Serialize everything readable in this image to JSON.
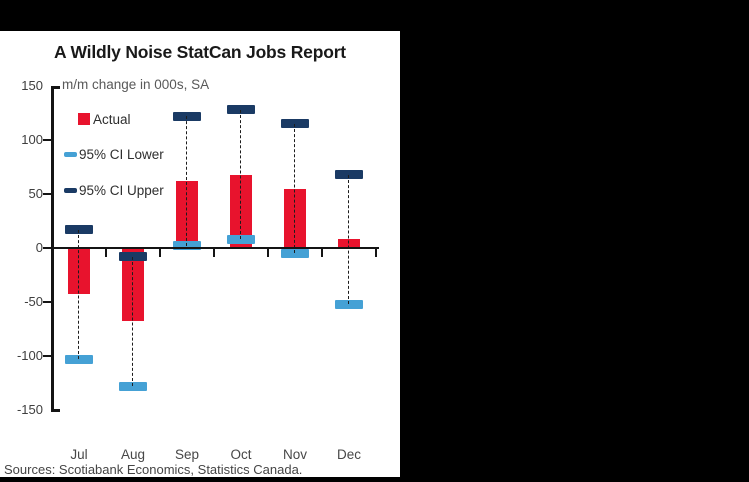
{
  "frame": {
    "background_color": "#000000",
    "panel_color": "#ffffff"
  },
  "chart_data": {
    "type": "bar",
    "title": "A Wildly Noise StatCan Jobs Report",
    "subtitle": "m/m change in 000s, SA",
    "categories": [
      "Jul",
      "Aug",
      "Sep",
      "Oct",
      "Nov",
      "Dec"
    ],
    "series": [
      {
        "name": "Actual",
        "marker": "square",
        "color": "#e8132d",
        "values": [
          -43,
          -68,
          62,
          68,
          55,
          8
        ]
      },
      {
        "name": "95% CI Lower",
        "marker": "dash",
        "color": "#45a1d5",
        "values": [
          -103,
          -128,
          2,
          8,
          -5,
          -52
        ]
      },
      {
        "name": "95% CI Upper",
        "marker": "dash",
        "color": "#1a3a64",
        "values": [
          17,
          -8,
          122,
          128,
          115,
          68
        ]
      }
    ],
    "ylim": [
      -150,
      150
    ],
    "yticks": [
      150,
      100,
      50,
      0,
      -50,
      -100,
      -150
    ],
    "grid": false,
    "legend_position": "upper-left",
    "whisker_style": "dashed",
    "source_note": "Sources: Scotiabank Economics, Statistics Canada."
  }
}
